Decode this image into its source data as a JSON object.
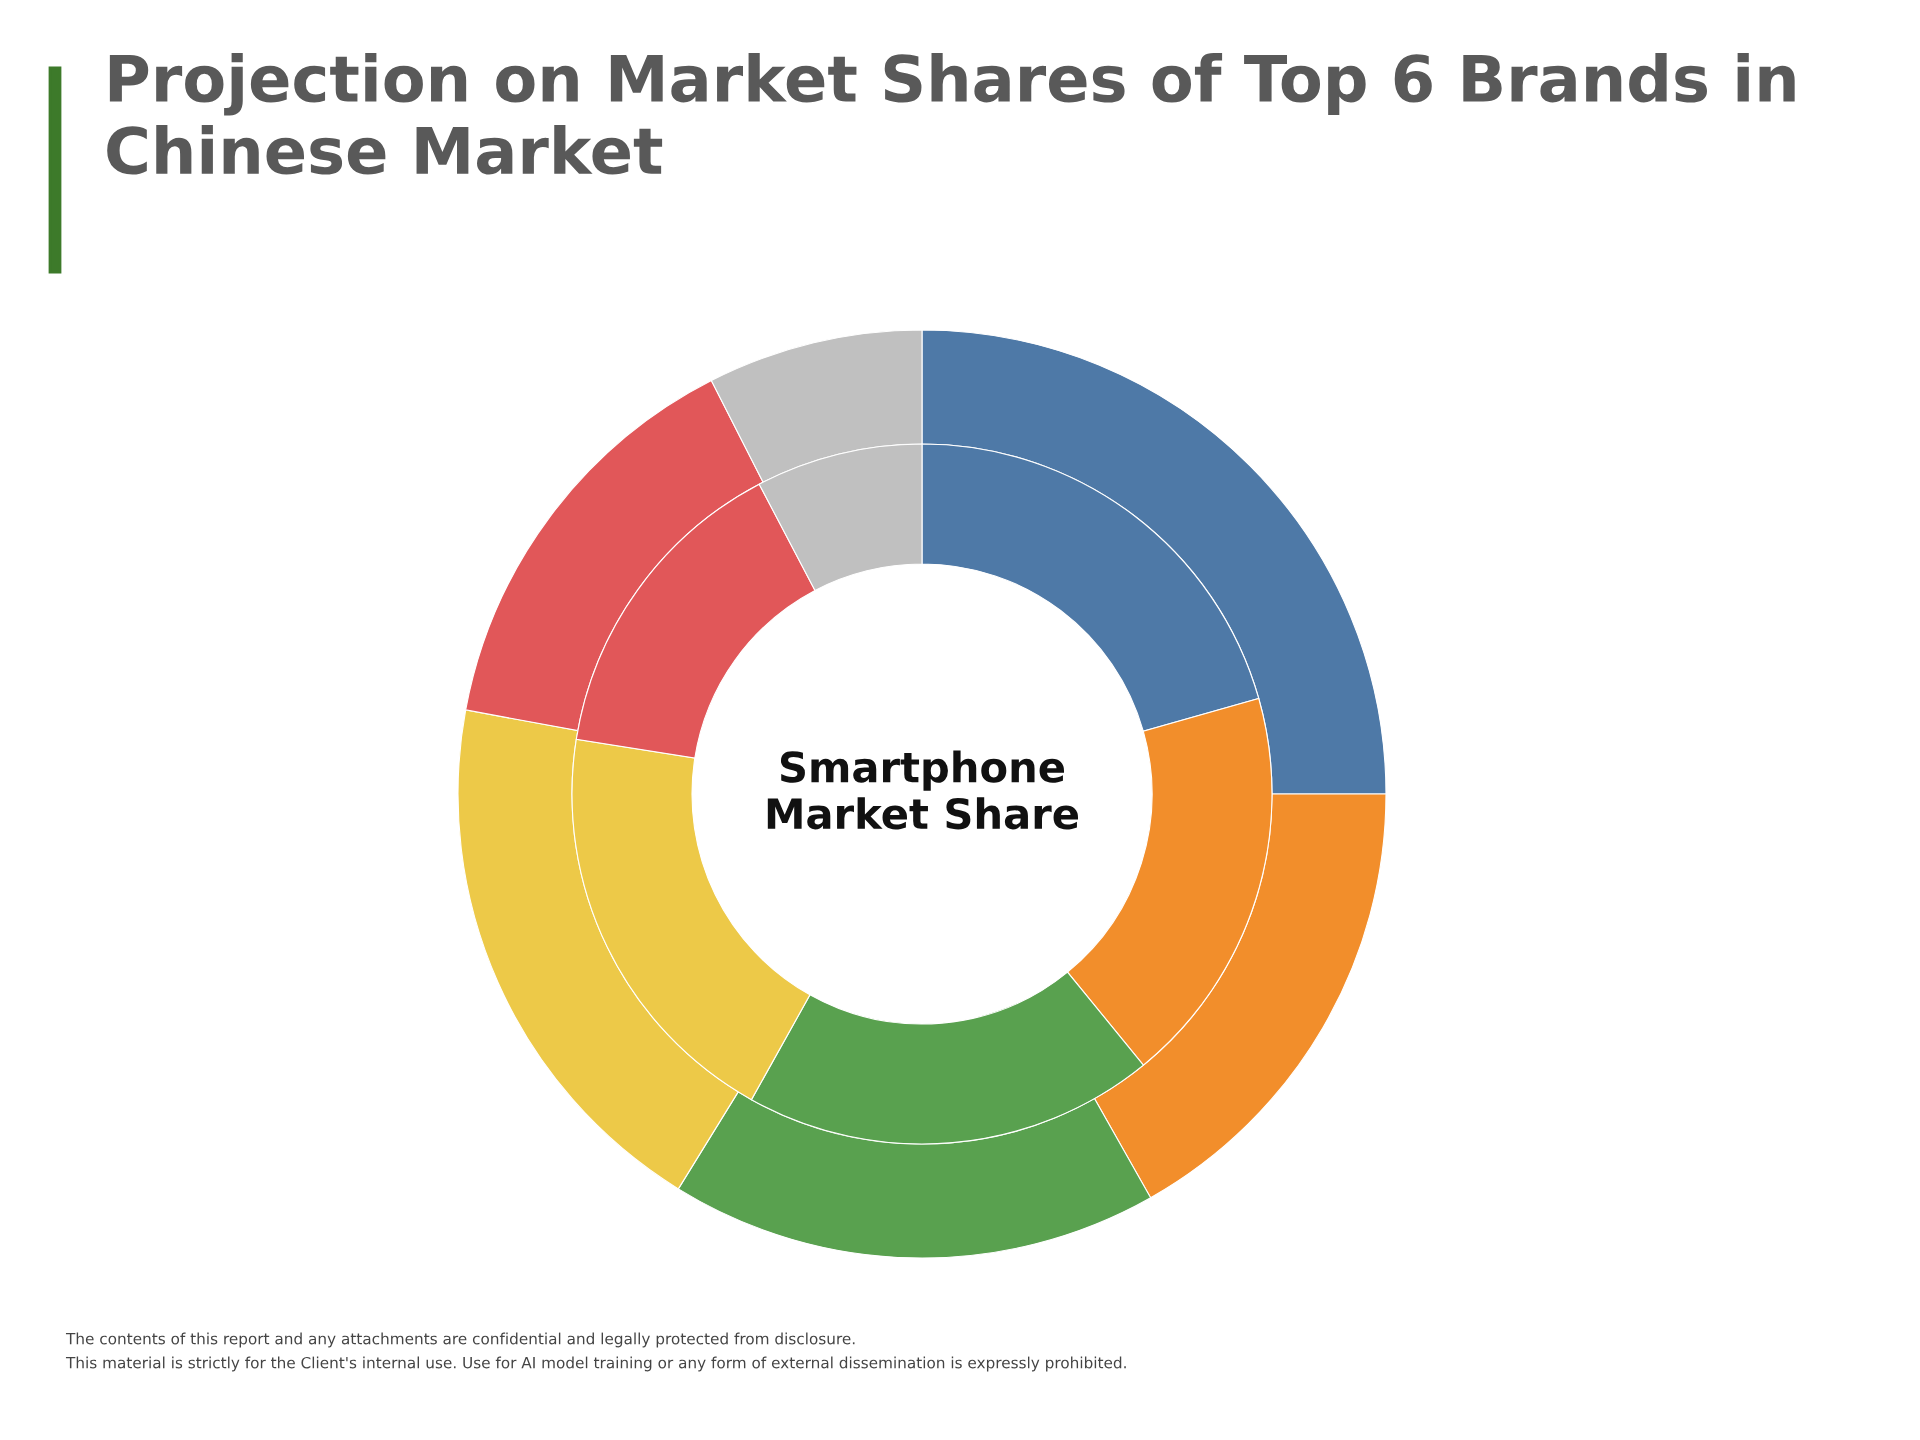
{
  "chart_data": {
    "type": "donut",
    "title": "Projection on Market Shares of Top 6 Brands in Chinese Market",
    "categories": [
      null,
      null,
      null,
      null,
      null,
      null
    ],
    "colors": [
      "#4e79a7",
      "#f28e2b",
      "#59a14f",
      "#edc948",
      "#e15759",
      "#c0c0c0"
    ],
    "series": [
      {
        "values": [
          25,
          16.8,
          17,
          19.1,
          14.6,
          7.5
        ]
      },
      {
        "values": [
          20.6,
          18.5,
          19,
          19.4,
          14.8,
          7.7
        ]
      }
    ],
    "annotations": [
      "Smartphone\nMarket Share",
      "The contents of this report and any attachments are confidential and legally protected from disclosure.",
      "This material is strictly for the Client's internal use. Use for AI model training or any form of external dissemination is expressly prohibited."
    ],
    "legend": false
  }
}
